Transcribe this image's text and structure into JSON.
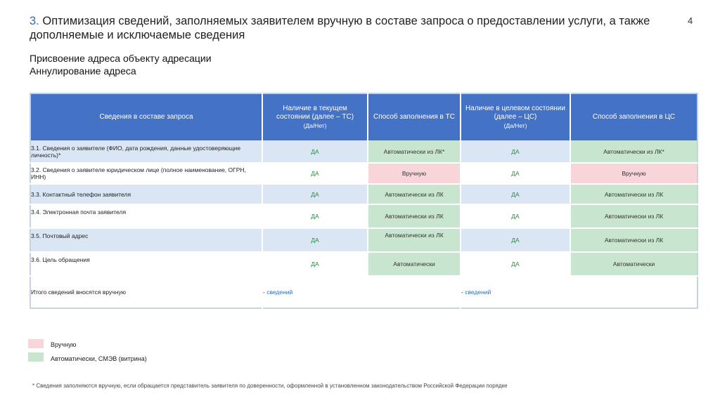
{
  "title": {
    "number": "3.",
    "text": "Оптимизация сведений, заполняемых заявителем вручную в составе запроса о предоставлении услуги, а также дополняемые и исключаемые сведения"
  },
  "page_number": "4",
  "subtitle": {
    "line1": "Присвоение адреса объекту адресации",
    "line2": "Аннулирование адреса"
  },
  "table": {
    "headers": {
      "info": "Сведения в составе запроса",
      "ts_presence": "Наличие в текущем состоянии (далее – ТС)",
      "ts_presence_sub": "(Да/Нет)",
      "ts_method": "Способ заполнения в ТС",
      "cs_presence": "Наличие в целевом состоянии (далее – ЦС)",
      "cs_presence_sub": "(Да/Нет)",
      "cs_method": "Способ заполнения в ЦС"
    },
    "rows": [
      {
        "label": "3.1. Сведения о заявителе (ФИО, дата рождения, данные удостоверяющие личность)*",
        "ts": "ДА",
        "ts_method": "Автоматически из ЛК*",
        "cs": "ДА",
        "cs_method": "Автоматически из ЛК*"
      },
      {
        "label": "3.2. Сведения о заявителе юридическом лице (полное наименование, ОГРН, ИНН)",
        "ts": "ДА",
        "ts_method": "Вручную",
        "cs": "ДА",
        "cs_method": "Вручную"
      },
      {
        "label": "3.3. Контактный телефон заявителя",
        "ts": "ДА",
        "ts_method": "Автоматически из ЛК",
        "cs": "ДА",
        "cs_method": "Автоматически из ЛК"
      },
      {
        "label": "3.4. Электронная почта заявителя",
        "ts": "ДА",
        "ts_method": "Автоматически из ЛК",
        "cs": "ДА",
        "cs_method": "Автоматически из ЛК"
      },
      {
        "label": "3.5. Почтовый адрес",
        "ts": "ДА",
        "ts_method": "Автоматически из ЛК",
        "cs": "ДА",
        "cs_method": "Автоматически из ЛК"
      },
      {
        "label": "3.6. Цель обращения",
        "ts": "ДА",
        "ts_method": "Автоматически",
        "cs": "ДА",
        "cs_method": "Автоматически"
      }
    ],
    "total": {
      "label": "Итого сведений вносятся вручную",
      "ts_dash": "-",
      "ts_word": "сведений",
      "cs_dash": "-",
      "cs_word": "сведений"
    }
  },
  "legend": {
    "manual": "Вручную",
    "auto": "Автоматически, СМЭВ (витрина)",
    "manual_color": "#f7d5d8",
    "auto_color": "#c8e6cf"
  },
  "footnote": "* Сведения заполняются вручную, если обращается представитель заявителя по доверенности, оформленной в установленном законодательством Российской Федерации порядке"
}
